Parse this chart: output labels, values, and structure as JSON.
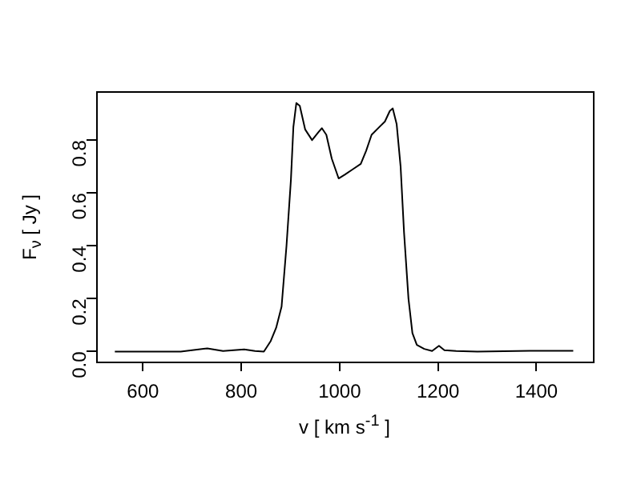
{
  "chart_data": {
    "type": "line",
    "xlabel": "v [ km s$^{-1}$ ]",
    "ylabel": "F$_{ν}$ [ Jy ]",
    "xlim": [
      505,
      1515
    ],
    "ylim": [
      -0.038,
      0.985
    ],
    "xticks": [
      600,
      800,
      1000,
      1200,
      1400
    ],
    "yticks": [
      {
        "value": 0,
        "label": "0.0"
      },
      0.2,
      0.4,
      0.6,
      0.8
    ],
    "grid": false,
    "legend": false,
    "marker": "none",
    "line_style": "solid",
    "x": [
      543,
      677,
      731,
      763,
      806,
      828,
      846,
      860,
      871,
      882,
      892,
      901,
      906,
      912,
      919,
      930,
      944,
      957,
      964,
      973,
      984,
      998,
      1011,
      1027,
      1043,
      1054,
      1065,
      1081,
      1092,
      1102,
      1108,
      1116,
      1124,
      1131,
      1140,
      1148,
      1157,
      1172,
      1188,
      1202,
      1213,
      1237,
      1280,
      1387,
      1475
    ],
    "series": [
      {
        "color": "#000000",
        "values": [
          0,
          0,
          0.012,
          0.002,
          0.008,
          0.002,
          0,
          0.04,
          0.09,
          0.17,
          0.4,
          0.65,
          0.85,
          0.94,
          0.93,
          0.84,
          0.8,
          0.83,
          0.845,
          0.82,
          0.73,
          0.655,
          0.67,
          0.69,
          0.71,
          0.76,
          0.82,
          0.85,
          0.87,
          0.91,
          0.92,
          0.86,
          0.7,
          0.45,
          0.2,
          0.07,
          0.025,
          0.01,
          0.002,
          0.022,
          0.005,
          0.002,
          0,
          0.003,
          0.003
        ]
      }
    ]
  }
}
